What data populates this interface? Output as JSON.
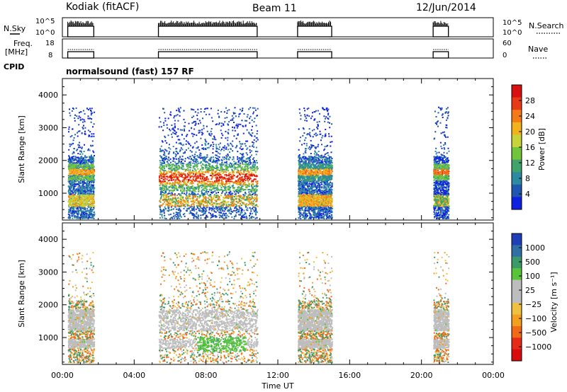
{
  "header": {
    "station": "Kodiak (fitACF)",
    "beam": "Beam 11",
    "date": "12/Jun/2014"
  },
  "strip_labels": {
    "nsky": "N.Sky",
    "nsearch": "N.Search",
    "freq_line1": "Freq.",
    "freq_line2": "[MHz]",
    "nave": "Nave",
    "cpid": "CPID",
    "cpid_text": "normalsound (fast) 157 RF",
    "noise_ticks_left": [
      "10^5",
      "10^0"
    ],
    "noise_ticks_right": [
      "10^5",
      "10^0"
    ],
    "freq_ticks": [
      "18",
      "8"
    ],
    "nave_ticks": [
      "60",
      "0"
    ]
  },
  "chart_data": {
    "type": "heatmap",
    "title": "Kodiak (fitACF)  Beam 11  12/Jun/2014",
    "xlabel": "Time UT",
    "ylabel": "Slant Range [km]",
    "x_ticks": [
      "00:00",
      "04:00",
      "08:00",
      "12:00",
      "16:00",
      "20:00",
      "00:00"
    ],
    "xlim_hours": [
      0,
      24
    ],
    "ylim_km": [
      180,
      4500
    ],
    "y_ticks": [
      1000,
      2000,
      3000,
      4000
    ],
    "operating_intervals_hours": [
      [
        0.3,
        1.75
      ],
      [
        5.35,
        10.85
      ],
      [
        13.1,
        15.0
      ],
      [
        20.65,
        21.5
      ]
    ],
    "power_panel": {
      "colorbar_label": "Power [dB]",
      "colorbar_ticks": [
        "28",
        "24",
        "20",
        "16",
        "12",
        "8",
        "4"
      ],
      "colors": [
        "#1020e0",
        "#1f57b0",
        "#2e8aa0",
        "#3fa36a",
        "#72c43a",
        "#c6d33a",
        "#f2b21b",
        "#f37a17",
        "#e83a16",
        "#d91010"
      ]
    },
    "velocity_panel": {
      "colorbar_label": "Velocity [m s⁻¹]",
      "colorbar_ticks": [
        "1000",
        "500",
        "100",
        "25",
        "−25",
        "−100",
        "−500",
        "−1000"
      ],
      "colors": [
        "#1f3fb8",
        "#2f6fa6",
        "#3c9a6a",
        "#58c43a",
        "#bdbdbd",
        "#bdbdbd",
        "#f0c040",
        "#f3a020",
        "#f06a18",
        "#e52a16",
        "#d80c0c"
      ]
    }
  }
}
